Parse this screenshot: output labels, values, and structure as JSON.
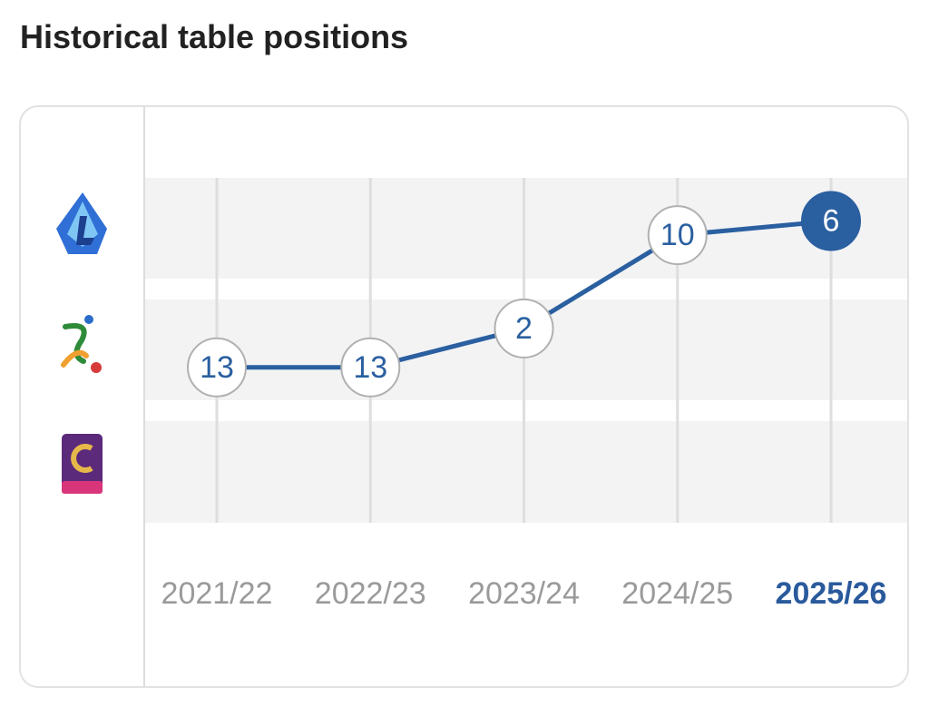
{
  "header": {
    "title": "Historical table positions"
  },
  "chart_data": {
    "type": "line",
    "categories": [
      "2021/22",
      "2022/23",
      "2023/24",
      "2024/25",
      "2025/26"
    ],
    "series": [
      {
        "color": "#2a5fa0",
        "values": [
          13,
          13,
          2,
          10,
          6
        ],
        "tier": [
          2,
          2,
          2,
          1,
          1
        ]
      }
    ]
  }
}
